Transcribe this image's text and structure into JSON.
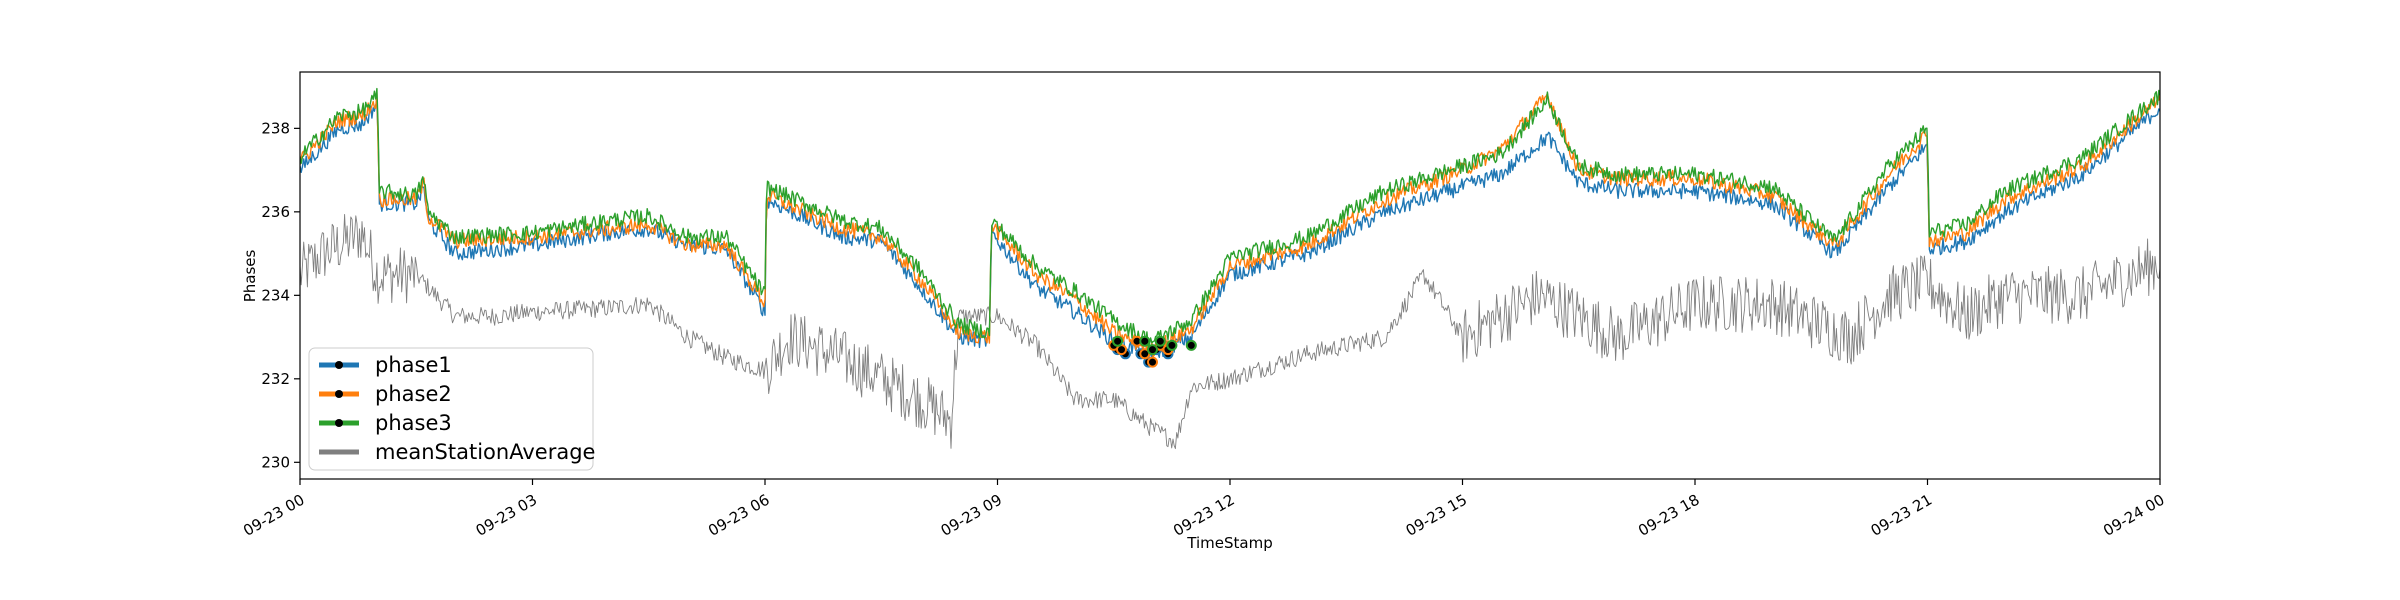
{
  "chart_data": {
    "type": "line",
    "xlabel": "TimeStamp",
    "ylabel": "Phases",
    "ylim": [
      229.6,
      239.35
    ],
    "xlim": [
      "09-23 00",
      "09-24 00"
    ],
    "x_ticks": [
      "09-23 00",
      "09-23 03",
      "09-23 06",
      "09-23 09",
      "09-23 12",
      "09-23 15",
      "09-23 18",
      "09-23 21",
      "09-24 00"
    ],
    "y_ticks": [
      230,
      232,
      234,
      236,
      238
    ],
    "grid": false,
    "legend_position": "lower-left",
    "series": [
      {
        "name": "phase1",
        "color": "#1f77b4",
        "x_hours": [
          0,
          0.5,
          0.8,
          1.0,
          1.02,
          1.5,
          1.6,
          1.65,
          2.0,
          3.0,
          4.0,
          4.5,
          5.0,
          5.5,
          6.0,
          6.02,
          7.0,
          7.5,
          8.0,
          8.5,
          8.9,
          8.92,
          9.5,
          10.0,
          10.5,
          11.0,
          11.5,
          12.0,
          13.0,
          14.0,
          15.0,
          15.5,
          16.1,
          16.5,
          17.0,
          18.0,
          19.0,
          19.8,
          20.5,
          21.0,
          21.02,
          21.5,
          22.0,
          23.0,
          24.0
        ],
        "values": [
          237.0,
          238.0,
          238.1,
          238.6,
          236.2,
          236.2,
          236.6,
          235.8,
          235.0,
          235.2,
          235.5,
          235.6,
          235.2,
          235.1,
          233.6,
          236.3,
          235.4,
          235.3,
          234.2,
          233.0,
          232.9,
          235.5,
          234.2,
          233.6,
          232.9,
          232.6,
          233.0,
          234.5,
          235.0,
          236.0,
          236.6,
          236.9,
          237.8,
          236.7,
          236.5,
          236.5,
          236.2,
          235.0,
          236.6,
          237.6,
          235.1,
          235.3,
          236.0,
          236.9,
          238.5
        ]
      },
      {
        "name": "phase2",
        "color": "#ff7f0e",
        "x_hours": [
          0,
          0.5,
          0.8,
          1.0,
          1.02,
          1.5,
          1.6,
          1.65,
          2.0,
          3.0,
          4.0,
          4.5,
          5.0,
          5.5,
          6.0,
          6.02,
          7.0,
          7.5,
          8.0,
          8.5,
          8.9,
          8.92,
          9.5,
          10.0,
          10.5,
          11.0,
          11.5,
          12.0,
          13.0,
          14.0,
          15.0,
          15.5,
          16.1,
          16.5,
          17.0,
          18.0,
          19.0,
          19.8,
          20.5,
          21.0,
          21.02,
          21.5,
          22.0,
          23.0,
          24.0
        ],
        "values": [
          237.2,
          238.2,
          238.3,
          238.7,
          236.3,
          236.3,
          236.7,
          235.9,
          235.3,
          235.4,
          235.6,
          235.7,
          235.2,
          235.2,
          233.8,
          236.4,
          235.6,
          235.4,
          234.4,
          233.1,
          233.0,
          235.7,
          234.5,
          233.9,
          233.1,
          232.7,
          233.2,
          234.7,
          235.2,
          236.3,
          237.0,
          237.5,
          238.8,
          237.0,
          236.8,
          236.8,
          236.4,
          235.2,
          236.9,
          237.9,
          235.3,
          235.5,
          236.3,
          237.1,
          238.7
        ]
      },
      {
        "name": "phase3",
        "color": "#2ca02c",
        "x_hours": [
          0,
          0.5,
          0.8,
          1.0,
          1.02,
          1.5,
          1.6,
          1.65,
          2.0,
          3.0,
          4.0,
          4.5,
          5.0,
          5.5,
          6.0,
          6.02,
          7.0,
          7.5,
          8.0,
          8.5,
          8.9,
          8.92,
          9.5,
          10.0,
          10.5,
          11.0,
          11.5,
          12.0,
          13.0,
          14.0,
          15.0,
          15.5,
          16.1,
          16.5,
          17.0,
          18.0,
          19.0,
          19.8,
          20.5,
          21.0,
          21.02,
          21.5,
          22.0,
          23.0,
          24.0
        ],
        "values": [
          237.3,
          238.3,
          238.4,
          238.8,
          236.5,
          236.4,
          236.8,
          236.0,
          235.4,
          235.5,
          235.8,
          235.9,
          235.4,
          235.4,
          234.0,
          236.6,
          235.8,
          235.6,
          234.6,
          233.3,
          233.1,
          235.8,
          234.7,
          234.1,
          233.4,
          232.9,
          233.4,
          234.9,
          235.4,
          236.5,
          237.1,
          237.4,
          238.7,
          237.1,
          236.9,
          236.9,
          236.6,
          235.3,
          237.1,
          238.0,
          235.5,
          235.7,
          236.5,
          237.3,
          238.8
        ]
      },
      {
        "name": "meanStationAverage",
        "color": "#7f7f7f",
        "x_hours": [
          0,
          0.3,
          0.8,
          1.0,
          1.5,
          2.0,
          2.5,
          3.0,
          4.0,
          4.5,
          5.0,
          5.5,
          6.0,
          6.3,
          7.0,
          7.5,
          8.0,
          8.4,
          8.5,
          9.0,
          9.5,
          10.0,
          10.5,
          11.0,
          11.3,
          11.5,
          12.0,
          13.0,
          14.0,
          14.5,
          15.0,
          16.0,
          16.5,
          17.0,
          18.0,
          19.0,
          20.0,
          20.5,
          21.0,
          21.5,
          22.0,
          23.0,
          24.0
        ],
        "values": [
          234.5,
          235.0,
          235.5,
          234.5,
          234.5,
          233.5,
          233.5,
          233.6,
          233.7,
          233.8,
          233.0,
          232.5,
          232.2,
          233.0,
          232.5,
          232.0,
          231.5,
          231.0,
          233.5,
          233.5,
          232.8,
          231.5,
          231.5,
          230.8,
          230.5,
          231.8,
          232.0,
          232.6,
          233.0,
          234.5,
          233.0,
          234.0,
          233.5,
          233.0,
          233.8,
          233.8,
          233.0,
          234.0,
          234.3,
          233.5,
          234.0,
          234.0,
          234.8
        ]
      }
    ],
    "markers": {
      "phase1": [
        [
          10.55,
          232.7
        ],
        [
          10.65,
          232.6
        ],
        [
          10.85,
          232.6
        ],
        [
          10.95,
          232.4
        ],
        [
          11.05,
          232.7
        ],
        [
          11.2,
          232.6
        ]
      ],
      "phase2": [
        [
          10.5,
          232.8
        ],
        [
          10.6,
          232.7
        ],
        [
          10.8,
          232.9
        ],
        [
          10.9,
          232.6
        ],
        [
          11.0,
          232.4
        ],
        [
          11.1,
          232.8
        ],
        [
          11.2,
          232.7
        ]
      ],
      "phase3": [
        [
          10.55,
          232.9
        ],
        [
          10.9,
          232.9
        ],
        [
          11.0,
          232.7
        ],
        [
          11.1,
          232.9
        ],
        [
          11.25,
          232.8
        ],
        [
          11.5,
          232.8
        ]
      ]
    }
  }
}
